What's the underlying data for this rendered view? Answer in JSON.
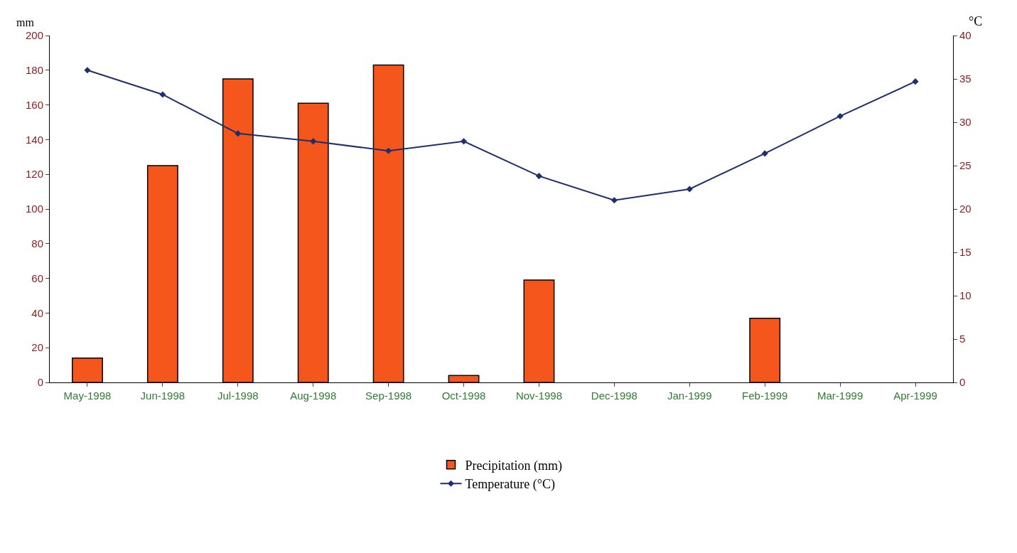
{
  "chart_data": {
    "type": "bar",
    "categories": [
      "May-1998",
      "Jun-1998",
      "Jul-1998",
      "Aug-1998",
      "Sep-1998",
      "Oct-1998",
      "Nov-1998",
      "Dec-1998",
      "Jan-1999",
      "Feb-1999",
      "Mar-1999",
      "Apr-1999"
    ],
    "series": [
      {
        "name": "Precipitation (mm)",
        "color": "#f4561c",
        "values": [
          14,
          125,
          175,
          161,
          183,
          4,
          59,
          0,
          0,
          37,
          0,
          0
        ]
      },
      {
        "name": "Temperature (°C)",
        "type": "line",
        "axis": "y2",
        "color": "#1f2f6e",
        "marker": "diamond",
        "values": [
          36.0,
          33.2,
          28.7,
          27.8,
          26.7,
          27.8,
          23.8,
          21.0,
          22.3,
          26.4,
          30.7,
          34.7
        ]
      }
    ],
    "ylabel": "mm",
    "y2label": "°C",
    "ylim": [
      0,
      200
    ],
    "yticks": [
      0,
      20,
      40,
      60,
      80,
      100,
      120,
      140,
      160,
      180,
      200
    ],
    "y2lim": [
      0,
      40
    ],
    "y2ticks": [
      0,
      5,
      10,
      15,
      20,
      25,
      30,
      35,
      40
    ],
    "grid": false,
    "legend": "bottom"
  }
}
